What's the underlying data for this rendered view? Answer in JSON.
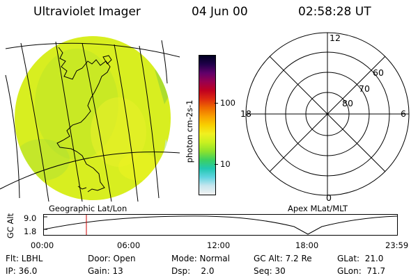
{
  "header": {
    "instrument": "Ultraviolet Imager",
    "date": "04 Jun 00",
    "time": "02:58:28 UT"
  },
  "colors": {
    "disk": "#d8ee20",
    "background": "#ffffff",
    "cursor": "#cc0000"
  },
  "colorbar": {
    "unit": "photon cm-2s-1",
    "ticks": [
      "100",
      "10"
    ],
    "stops": [
      "#f2f2f2",
      "#c8e6ee",
      "#60d4e0",
      "#22c8b0",
      "#3cd060",
      "#8ee22c",
      "#c8f020",
      "#f0f020",
      "#f8d000",
      "#f8a000",
      "#ee6a00",
      "#dd2a10",
      "#c00020",
      "#980050",
      "#60006a",
      "#20004a",
      "#000020"
    ]
  },
  "geo_label": "Geographic Lat/Lon",
  "polar": {
    "title": "Apex MLat/MLT",
    "mlt_labels": {
      "top": "12",
      "left": "18",
      "right": "6",
      "bottom": "0"
    },
    "lat_labels": [
      "60",
      "70",
      "80"
    ]
  },
  "timeline": {
    "ylabel": "GC Alt",
    "ymax": "9.0",
    "ymin": "1.8",
    "ticks": [
      "00:00",
      "06:00",
      "12:00",
      "18:00",
      "23:59"
    ],
    "cursor_time": "02:58"
  },
  "info": {
    "filter": "Flt: LBHL",
    "ip": "IP: 36.0",
    "door": "Door: Open",
    "gain": "Gain: 13",
    "mode": "Mode: Normal",
    "dsp": "Dsp:    2.0",
    "gc_alt": "GC Alt: 7.2 Re",
    "seq": "Seq: 30",
    "glat": "GLat:  21.0",
    "glon": "GLon:  71.7"
  }
}
